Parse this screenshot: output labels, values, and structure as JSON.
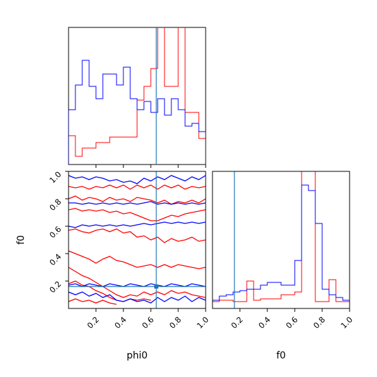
{
  "chart_data": {
    "type": "corner",
    "parameters": [
      "phi0",
      "f0"
    ],
    "truth_values": {
      "phi0": 0.64,
      "f0": 0.16
    },
    "colors": {
      "red_series": "#ff0000",
      "blue_series": "#0000ff",
      "truth_line": "#1f77b4"
    },
    "axis_labels": {
      "bottom_left_x": "phi0",
      "bottom_right_x": "f0",
      "bottom_left_y": "f0"
    },
    "ticks": {
      "phi0": [
        "0.2",
        "0.4",
        "0.6",
        "0.8",
        "1.0"
      ],
      "f0": [
        "0.2",
        "0.4",
        "0.6",
        "0.8",
        "1.0"
      ]
    },
    "xlim": [
      0,
      1.0
    ],
    "ylim": [
      0,
      1.0
    ],
    "hist_phi0": {
      "bin_edges": [
        0,
        0.05,
        0.1,
        0.15,
        0.2,
        0.25,
        0.3,
        0.35,
        0.4,
        0.45,
        0.5,
        0.55,
        0.6,
        0.65,
        0.7,
        0.75,
        0.8,
        0.85,
        0.9,
        0.95,
        1.0
      ],
      "red": [
        0.21,
        0.06,
        0.12,
        0.12,
        0.16,
        0.16,
        0.2,
        0.2,
        0.2,
        0.2,
        0.47,
        0.57,
        0.7,
        1.1,
        0.57,
        0.57,
        1.1,
        0.38,
        0.38,
        0.19
      ],
      "blue": [
        0.4,
        0.58,
        0.76,
        0.57,
        0.48,
        0.66,
        0.66,
        0.58,
        0.71,
        0.48,
        0.4,
        0.46,
        0.38,
        0.48,
        0.36,
        0.48,
        0.4,
        0.28,
        0.3,
        0.24
      ]
    },
    "hist_f0": {
      "bin_edges": [
        0,
        0.05,
        0.1,
        0.15,
        0.2,
        0.25,
        0.3,
        0.35,
        0.4,
        0.45,
        0.5,
        0.55,
        0.6,
        0.65,
        0.7,
        0.75,
        0.8,
        0.85,
        0.9,
        0.95,
        1.0
      ],
      "red": [
        0.05,
        0.06,
        0.06,
        0.05,
        0.05,
        0.2,
        0.06,
        0.07,
        0.07,
        0.07,
        0.1,
        0.1,
        0.12,
        1.1,
        1.1,
        0.05,
        0.05,
        0.21,
        0.05,
        0.05
      ],
      "blue": [
        0.06,
        0.09,
        0.1,
        0.12,
        0.13,
        0.14,
        0.14,
        0.17,
        0.19,
        0.19,
        0.17,
        0.17,
        0.35,
        0.9,
        0.86,
        0.62,
        0.14,
        0.1,
        0.08,
        0.06
      ]
    },
    "contours_2d": {
      "red": [
        [
          [
            0.0,
            0.89
          ],
          [
            0.05,
            0.88
          ],
          [
            0.1,
            0.89
          ],
          [
            0.15,
            0.87
          ],
          [
            0.2,
            0.89
          ],
          [
            0.25,
            0.88
          ],
          [
            0.3,
            0.9
          ],
          [
            0.35,
            0.88
          ],
          [
            0.4,
            0.9
          ],
          [
            0.45,
            0.87
          ],
          [
            0.5,
            0.9
          ],
          [
            0.55,
            0.88
          ],
          [
            0.6,
            0.9
          ],
          [
            0.65,
            0.87
          ],
          [
            0.7,
            0.9
          ],
          [
            0.75,
            0.88
          ],
          [
            0.8,
            0.9
          ],
          [
            0.85,
            0.87
          ],
          [
            0.9,
            0.89
          ],
          [
            0.95,
            0.88
          ],
          [
            1.0,
            0.89
          ]
        ],
        [
          [
            0.0,
            0.8
          ],
          [
            0.05,
            0.82
          ],
          [
            0.1,
            0.79
          ],
          [
            0.15,
            0.81
          ],
          [
            0.2,
            0.8
          ],
          [
            0.25,
            0.78
          ],
          [
            0.3,
            0.81
          ],
          [
            0.35,
            0.79
          ],
          [
            0.4,
            0.8
          ],
          [
            0.45,
            0.78
          ],
          [
            0.5,
            0.81
          ],
          [
            0.55,
            0.8
          ],
          [
            0.6,
            0.79
          ],
          [
            0.65,
            0.77
          ],
          [
            0.7,
            0.79
          ],
          [
            0.75,
            0.76
          ],
          [
            0.8,
            0.78
          ],
          [
            0.85,
            0.77
          ],
          [
            0.9,
            0.79
          ],
          [
            0.95,
            0.77
          ],
          [
            1.0,
            0.8
          ]
        ],
        [
          [
            0.0,
            0.72
          ],
          [
            0.05,
            0.73
          ],
          [
            0.1,
            0.71
          ],
          [
            0.15,
            0.72
          ],
          [
            0.2,
            0.71
          ],
          [
            0.25,
            0.72
          ],
          [
            0.3,
            0.7
          ],
          [
            0.35,
            0.71
          ],
          [
            0.4,
            0.69
          ],
          [
            0.45,
            0.7
          ],
          [
            0.5,
            0.68
          ],
          [
            0.55,
            0.66
          ],
          [
            0.6,
            0.64
          ],
          [
            0.65,
            0.64
          ],
          [
            0.7,
            0.66
          ],
          [
            0.75,
            0.68
          ],
          [
            0.8,
            0.67
          ],
          [
            0.85,
            0.69
          ],
          [
            0.9,
            0.7
          ],
          [
            0.95,
            0.71
          ],
          [
            1.0,
            0.72
          ]
        ],
        [
          [
            0.0,
            0.57
          ],
          [
            0.05,
            0.58
          ],
          [
            0.1,
            0.56
          ],
          [
            0.15,
            0.55
          ],
          [
            0.2,
            0.57
          ],
          [
            0.25,
            0.58
          ],
          [
            0.3,
            0.56
          ],
          [
            0.35,
            0.58
          ],
          [
            0.4,
            0.55
          ],
          [
            0.45,
            0.56
          ],
          [
            0.5,
            0.52
          ],
          [
            0.55,
            0.53
          ],
          [
            0.6,
            0.5
          ],
          [
            0.65,
            0.52
          ],
          [
            0.7,
            0.48
          ],
          [
            0.75,
            0.51
          ],
          [
            0.8,
            0.49
          ],
          [
            0.85,
            0.5
          ],
          [
            0.9,
            0.52
          ],
          [
            0.95,
            0.49
          ],
          [
            1.0,
            0.5
          ]
        ],
        [
          [
            0.0,
            0.42
          ],
          [
            0.05,
            0.4
          ],
          [
            0.1,
            0.38
          ],
          [
            0.15,
            0.36
          ],
          [
            0.2,
            0.33
          ],
          [
            0.25,
            0.36
          ],
          [
            0.3,
            0.38
          ],
          [
            0.35,
            0.35
          ],
          [
            0.4,
            0.34
          ],
          [
            0.45,
            0.32
          ],
          [
            0.5,
            0.3
          ],
          [
            0.55,
            0.31
          ],
          [
            0.6,
            0.32
          ],
          [
            0.65,
            0.3
          ],
          [
            0.7,
            0.32
          ],
          [
            0.75,
            0.3
          ],
          [
            0.8,
            0.32
          ],
          [
            0.85,
            0.31
          ],
          [
            0.9,
            0.3
          ],
          [
            0.95,
            0.29
          ],
          [
            1.0,
            0.3
          ]
        ],
        [
          [
            0.0,
            0.3
          ],
          [
            0.05,
            0.27
          ],
          [
            0.1,
            0.24
          ],
          [
            0.15,
            0.22
          ],
          [
            0.2,
            0.19
          ],
          [
            0.25,
            0.16
          ],
          [
            0.3,
            0.13
          ],
          [
            0.35,
            0.1
          ],
          [
            0.4,
            0.08
          ],
          [
            0.45,
            0.1
          ],
          [
            0.5,
            0.09
          ],
          [
            0.55,
            0.12
          ],
          [
            0.6,
            0.1
          ],
          [
            0.65,
            0.12
          ],
          [
            0.7,
            0.1
          ],
          [
            0.75,
            0.13
          ],
          [
            0.8,
            0.11
          ],
          [
            0.85,
            0.12
          ],
          [
            0.9,
            0.1
          ],
          [
            0.95,
            0.09
          ],
          [
            1.0,
            0.08
          ]
        ],
        [
          [
            0.0,
            0.18
          ],
          [
            0.05,
            0.2
          ],
          [
            0.1,
            0.17
          ],
          [
            0.15,
            0.16
          ],
          [
            0.2,
            0.13
          ],
          [
            0.25,
            0.11
          ],
          [
            0.3,
            0.08
          ],
          [
            0.35,
            0.06
          ],
          [
            0.4,
            0.05
          ],
          [
            0.45,
            0.07
          ],
          [
            0.5,
            0.06
          ],
          [
            0.55,
            0.07
          ],
          [
            0.6,
            0.06
          ]
        ],
        [
          [
            0.0,
            0.05
          ],
          [
            0.05,
            0.07
          ],
          [
            0.1,
            0.05
          ],
          [
            0.15,
            0.06
          ],
          [
            0.2,
            0.04
          ],
          [
            0.25,
            0.06
          ],
          [
            0.3,
            0.04
          ],
          [
            0.35,
            0.03
          ]
        ]
      ],
      "blue": [
        [
          [
            0.0,
            0.97
          ],
          [
            0.05,
            0.95
          ],
          [
            0.1,
            0.96
          ],
          [
            0.15,
            0.94
          ],
          [
            0.2,
            0.96
          ],
          [
            0.25,
            0.95
          ],
          [
            0.3,
            0.93
          ],
          [
            0.35,
            0.94
          ],
          [
            0.4,
            0.92
          ],
          [
            0.45,
            0.93
          ],
          [
            0.5,
            0.91
          ],
          [
            0.55,
            0.95
          ],
          [
            0.6,
            0.93
          ],
          [
            0.65,
            0.96
          ],
          [
            0.7,
            0.94
          ],
          [
            0.75,
            0.97
          ],
          [
            0.8,
            0.95
          ],
          [
            0.85,
            0.93
          ],
          [
            0.9,
            0.96
          ],
          [
            0.95,
            0.94
          ],
          [
            1.0,
            0.97
          ]
        ],
        [
          [
            0.0,
            0.77
          ],
          [
            0.05,
            0.77
          ],
          [
            0.1,
            0.76
          ],
          [
            0.15,
            0.77
          ],
          [
            0.2,
            0.76
          ],
          [
            0.25,
            0.77
          ],
          [
            0.3,
            0.76
          ],
          [
            0.35,
            0.77
          ],
          [
            0.4,
            0.76
          ],
          [
            0.45,
            0.77
          ],
          [
            0.5,
            0.76
          ],
          [
            0.55,
            0.77
          ],
          [
            0.6,
            0.78
          ],
          [
            0.65,
            0.76
          ],
          [
            0.7,
            0.77
          ],
          [
            0.75,
            0.76
          ],
          [
            0.8,
            0.77
          ],
          [
            0.85,
            0.76
          ],
          [
            0.9,
            0.77
          ],
          [
            0.95,
            0.76
          ],
          [
            1.0,
            0.77
          ]
        ],
        [
          [
            0.0,
            0.6
          ],
          [
            0.05,
            0.59
          ],
          [
            0.1,
            0.61
          ],
          [
            0.15,
            0.6
          ],
          [
            0.2,
            0.61
          ],
          [
            0.25,
            0.6
          ],
          [
            0.3,
            0.61
          ],
          [
            0.35,
            0.6
          ],
          [
            0.4,
            0.61
          ],
          [
            0.45,
            0.6
          ],
          [
            0.5,
            0.61
          ],
          [
            0.55,
            0.62
          ],
          [
            0.6,
            0.61
          ],
          [
            0.65,
            0.62
          ],
          [
            0.7,
            0.63
          ],
          [
            0.75,
            0.62
          ],
          [
            0.8,
            0.63
          ],
          [
            0.85,
            0.62
          ],
          [
            0.9,
            0.63
          ],
          [
            0.95,
            0.62
          ],
          [
            1.0,
            0.63
          ]
        ],
        [
          [
            0.0,
            0.17
          ],
          [
            0.05,
            0.18
          ],
          [
            0.1,
            0.16
          ],
          [
            0.15,
            0.18
          ],
          [
            0.2,
            0.17
          ],
          [
            0.25,
            0.16
          ],
          [
            0.3,
            0.18
          ],
          [
            0.35,
            0.17
          ],
          [
            0.4,
            0.16
          ],
          [
            0.45,
            0.18
          ],
          [
            0.5,
            0.17
          ],
          [
            0.55,
            0.16
          ],
          [
            0.6,
            0.18
          ],
          [
            0.65,
            0.17
          ],
          [
            0.7,
            0.16
          ],
          [
            0.75,
            0.18
          ],
          [
            0.8,
            0.17
          ],
          [
            0.85,
            0.16
          ],
          [
            0.9,
            0.18
          ],
          [
            0.95,
            0.17
          ],
          [
            1.0,
            0.16
          ]
        ],
        [
          [
            0.0,
            0.12
          ],
          [
            0.05,
            0.1
          ],
          [
            0.1,
            0.12
          ],
          [
            0.15,
            0.09
          ],
          [
            0.2,
            0.11
          ],
          [
            0.25,
            0.08
          ],
          [
            0.3,
            0.1
          ],
          [
            0.35,
            0.06
          ],
          [
            0.4,
            0.05
          ],
          [
            0.45,
            0.07
          ],
          [
            0.5,
            0.05
          ],
          [
            0.55,
            0.06
          ],
          [
            0.6,
            0.04
          ],
          [
            0.65,
            0.08
          ],
          [
            0.7,
            0.05
          ],
          [
            0.75,
            0.08
          ],
          [
            0.8,
            0.06
          ],
          [
            0.85,
            0.09
          ],
          [
            0.9,
            0.05
          ],
          [
            0.95,
            0.08
          ],
          [
            1.0,
            0.06
          ]
        ]
      ]
    }
  }
}
